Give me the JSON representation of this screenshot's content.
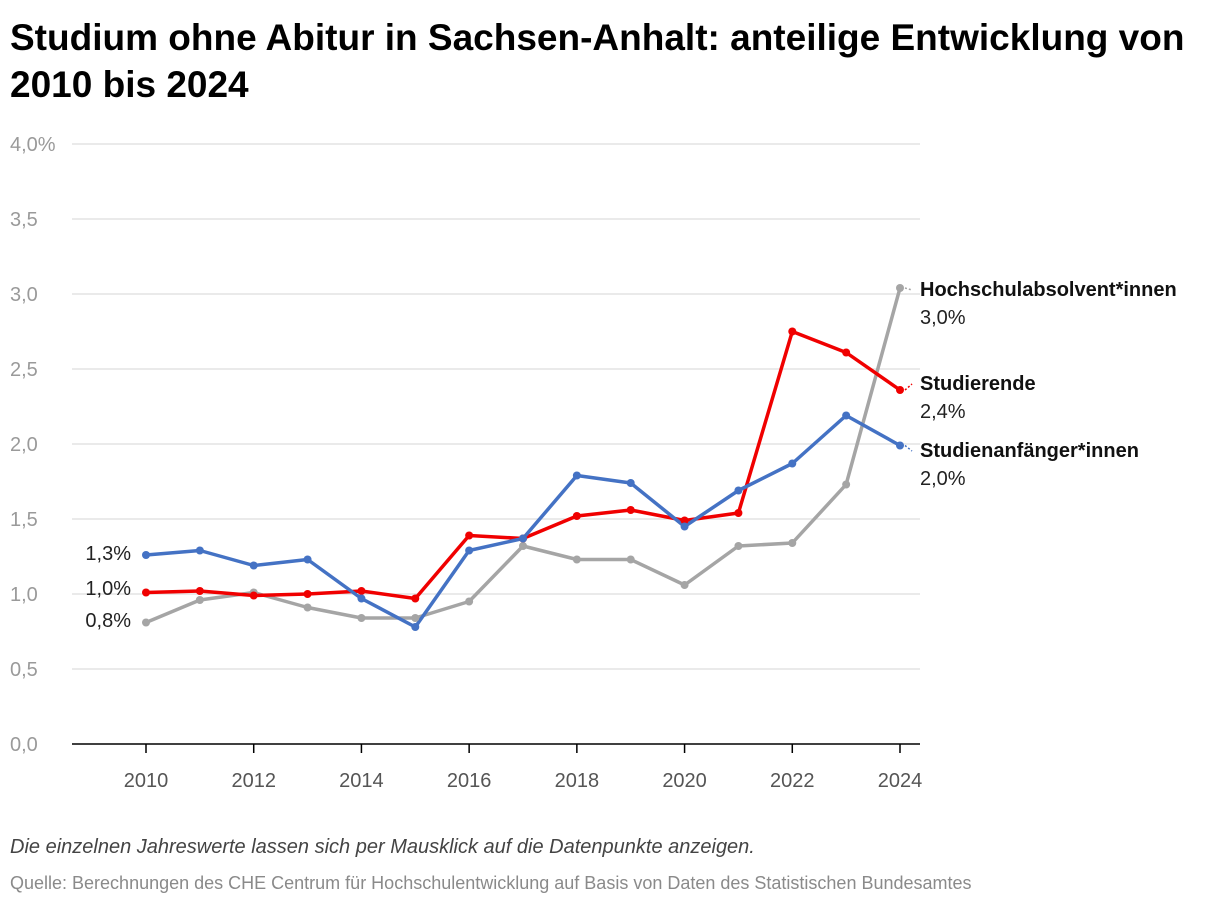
{
  "title": "Studium ohne Abitur in Sachsen-Anhalt: anteilige Entwicklung von 2010 bis 2024",
  "note": "Die einzelnen Jahreswerte lassen sich per Mausklick auf die Datenpunkte anzeigen.",
  "source": "Quelle: Berechnungen des CHE Centrum für Hochschulentwicklung auf Basis von Daten des Statistischen Bundesamtes",
  "chart_data": {
    "type": "line",
    "title": "Studium ohne Abitur in Sachsen-Anhalt: anteilige Entwicklung von 2010 bis 2024",
    "xlabel": "",
    "ylabel": "",
    "x": [
      2010,
      2011,
      2012,
      2013,
      2014,
      2015,
      2016,
      2017,
      2018,
      2019,
      2020,
      2021,
      2022,
      2023,
      2024
    ],
    "xticks": [
      2010,
      2012,
      2014,
      2016,
      2018,
      2020,
      2022,
      2024
    ],
    "xtick_labels": [
      "2010",
      "2012",
      "2014",
      "2016",
      "2018",
      "2020",
      "2022",
      "2024"
    ],
    "ylim": [
      0,
      4
    ],
    "yticks": [
      0,
      0.5,
      1.0,
      1.5,
      2.0,
      2.5,
      3.0,
      3.5,
      4.0
    ],
    "ytick_labels": [
      "0,0",
      "0,5",
      "1,0",
      "1,5",
      "2,0",
      "2,5",
      "3,0",
      "3,5",
      "4,0%"
    ],
    "grid": true,
    "series": [
      {
        "name": "Hochschulabsolvent*innen",
        "color": "#a5a5a5",
        "values": [
          0.81,
          0.96,
          1.01,
          0.91,
          0.84,
          0.84,
          0.95,
          1.32,
          1.23,
          1.23,
          1.06,
          1.32,
          1.34,
          1.73,
          3.04
        ],
        "start_label": "0,8%",
        "end_value_label": "3,0%"
      },
      {
        "name": "Studierende",
        "color": "#f00000",
        "values": [
          1.01,
          1.02,
          0.99,
          1.0,
          1.02,
          0.97,
          1.39,
          1.37,
          1.52,
          1.56,
          1.49,
          1.54,
          2.75,
          2.61,
          2.36
        ],
        "start_label": "1,0%",
        "end_value_label": "2,4%"
      },
      {
        "name": "Studienanfänger*innen",
        "color": "#4472c4",
        "values": [
          1.26,
          1.29,
          1.19,
          1.23,
          0.97,
          0.78,
          1.29,
          1.37,
          1.79,
          1.74,
          1.45,
          1.69,
          1.87,
          2.19,
          1.99
        ],
        "start_label": "1,3%",
        "end_value_label": "2,0%"
      }
    ]
  }
}
